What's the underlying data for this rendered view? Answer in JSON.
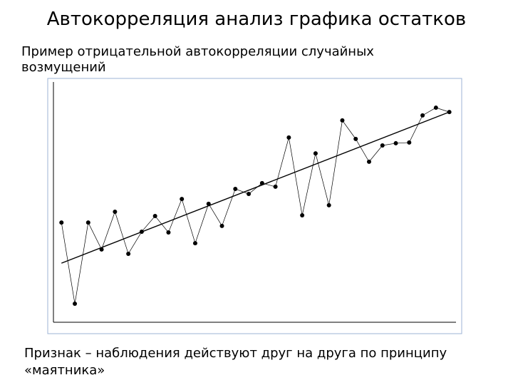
{
  "slide": {
    "title": "Автокорреляция анализ графика остатков",
    "subtitle": "Пример отрицательной автокорреляции случайных возмущений",
    "caption": "Признак – наблюдения действуют друг на друга по принципу «маятника»"
  },
  "chart_data": {
    "type": "line",
    "x": [
      1,
      2,
      3,
      4,
      5,
      6,
      7,
      8,
      9,
      10,
      11,
      12,
      13,
      14,
      15,
      16,
      17,
      18,
      19,
      20,
      21,
      22,
      23,
      24,
      25,
      26,
      27,
      28,
      29,
      30
    ],
    "values": [
      41.5,
      7.7,
      41.5,
      30.3,
      46,
      28.5,
      37.7,
      44.2,
      37.4,
      51.3,
      32.9,
      49.3,
      40.1,
      55.5,
      53.4,
      57.9,
      56.4,
      76.9,
      44.5,
      70.3,
      48.7,
      84,
      76.3,
      66.8,
      73.6,
      74.5,
      74.8,
      86.1,
      89.3,
      87.5
    ],
    "color": "#000000",
    "trend": {
      "x": [
        1,
        30
      ],
      "values": [
        24.6,
        87.5
      ]
    },
    "xlim": [
      0.4,
      30.5
    ],
    "ylim": [
      0,
      100
    ]
  }
}
